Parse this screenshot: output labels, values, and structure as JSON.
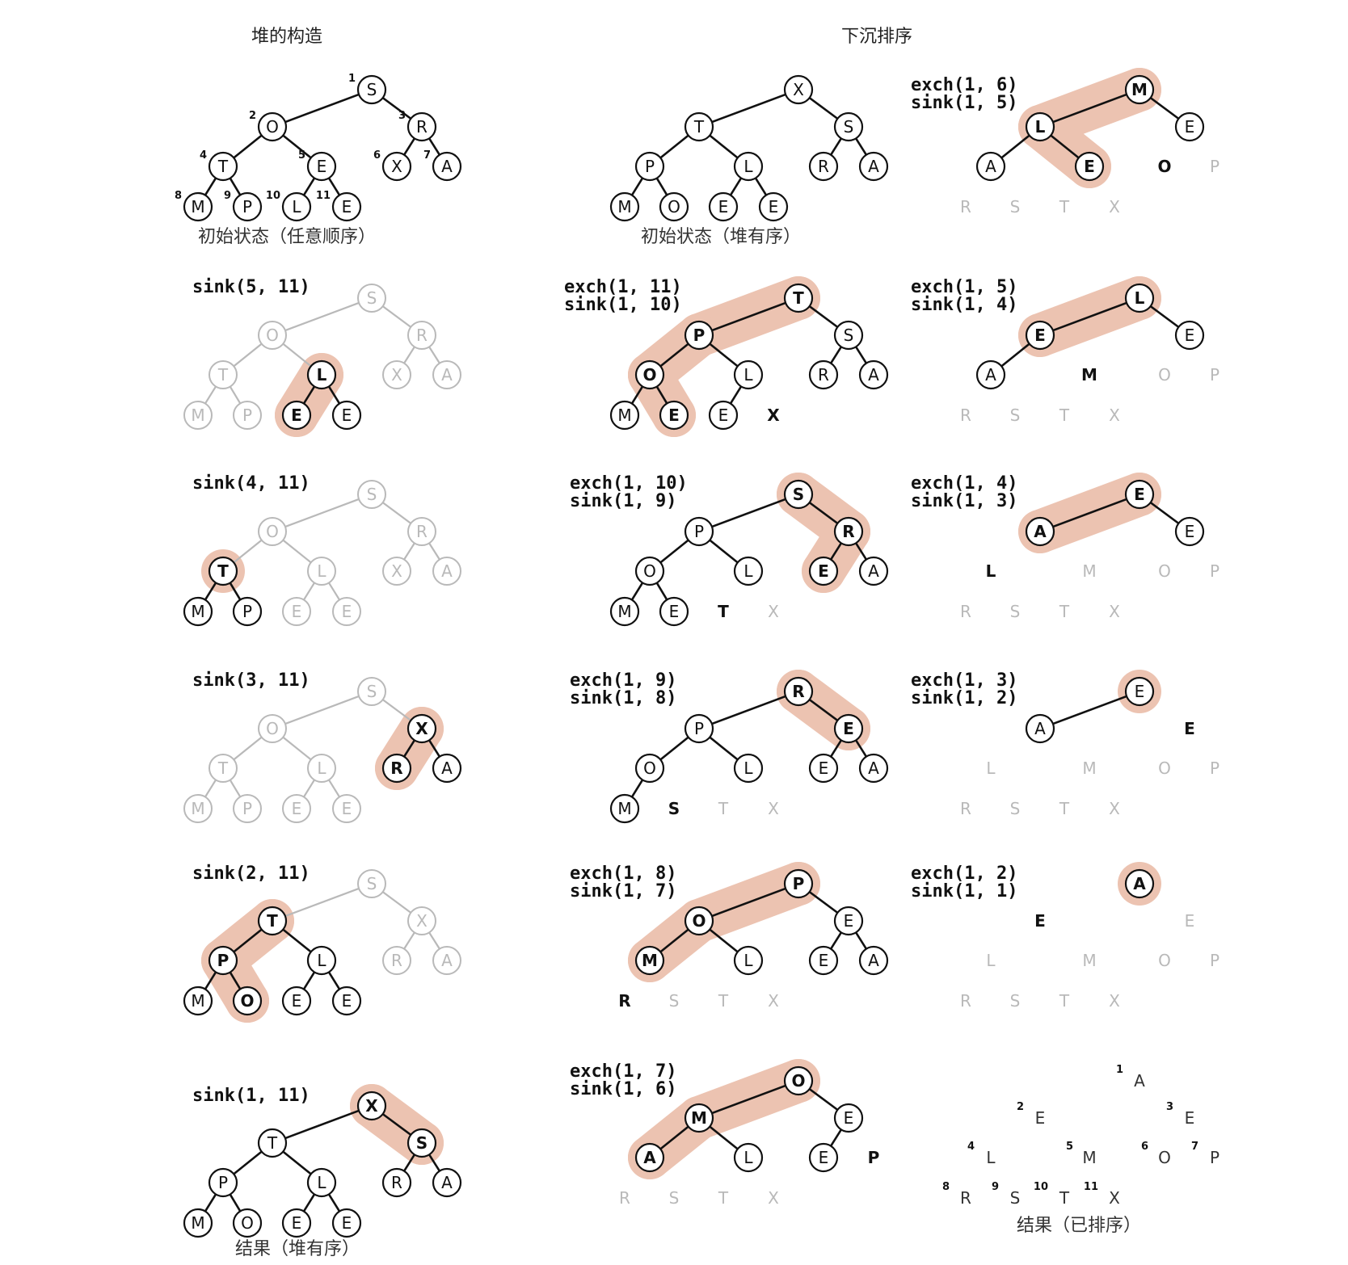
{
  "headings": {
    "build": "堆的构造",
    "sortdown": "下沉排序"
  },
  "captions": {
    "initial_arbitrary": "初始状态（任意顺序）",
    "initial_heap": "初始状态（堆有序）",
    "result_heap": "结果（堆有序）",
    "result_sorted": "结果（已排序）"
  },
  "index_labels": [
    "1",
    "2",
    "3",
    "4",
    "5",
    "6",
    "7",
    "8",
    "9",
    "10",
    "11"
  ],
  "build_steps": [
    {
      "id": "b0",
      "op": [],
      "keys": [
        "S",
        "O",
        "R",
        "T",
        "E",
        "X",
        "A",
        "M",
        "P",
        "L",
        "E"
      ],
      "node_style": [
        "n",
        "n",
        "n",
        "n",
        "n",
        "n",
        "n",
        "n",
        "n",
        "n",
        "n"
      ],
      "highlight": [],
      "edges_dark": "all",
      "show_index": true
    },
    {
      "id": "b1",
      "op": [
        "sink(5, 11)"
      ],
      "keys": [
        "S",
        "O",
        "R",
        "T",
        "L",
        "X",
        "A",
        "M",
        "P",
        "E",
        "E"
      ],
      "node_style": [
        "g",
        "g",
        "g",
        "g",
        "b",
        "g",
        "g",
        "g",
        "g",
        "b",
        "n"
      ],
      "highlight": [
        5,
        10
      ],
      "edges_dark": [
        [
          5,
          10
        ],
        [
          5,
          11
        ]
      ]
    },
    {
      "id": "b2",
      "op": [
        "sink(4, 11)"
      ],
      "keys": [
        "S",
        "O",
        "R",
        "T",
        "L",
        "X",
        "A",
        "M",
        "P",
        "E",
        "E"
      ],
      "node_style": [
        "g",
        "g",
        "g",
        "b",
        "g",
        "g",
        "g",
        "n",
        "n",
        "g",
        "g"
      ],
      "highlight": [
        4
      ],
      "edges_dark": [
        [
          4,
          8
        ],
        [
          4,
          9
        ]
      ]
    },
    {
      "id": "b3",
      "op": [
        "sink(3, 11)"
      ],
      "keys": [
        "S",
        "O",
        "X",
        "T",
        "L",
        "R",
        "A",
        "M",
        "P",
        "E",
        "E"
      ],
      "node_style": [
        "g",
        "g",
        "b",
        "g",
        "g",
        "b",
        "n",
        "g",
        "g",
        "g",
        "g"
      ],
      "highlight": [
        3,
        6
      ],
      "edges_dark": [
        [
          3,
          6
        ],
        [
          3,
          7
        ]
      ]
    },
    {
      "id": "b4",
      "op": [
        "sink(2, 11)"
      ],
      "keys": [
        "S",
        "T",
        "X",
        "P",
        "L",
        "R",
        "A",
        "M",
        "O",
        "E",
        "E"
      ],
      "node_style": [
        "g",
        "b",
        "g",
        "b",
        "n",
        "g",
        "g",
        "n",
        "b",
        "n",
        "n"
      ],
      "highlight": [
        2,
        4,
        9
      ],
      "edges_dark": [
        [
          2,
          4
        ],
        [
          2,
          5
        ],
        [
          4,
          8
        ],
        [
          4,
          9
        ],
        [
          5,
          10
        ],
        [
          5,
          11
        ]
      ]
    },
    {
      "id": "b5",
      "op": [
        "sink(1, 11)"
      ],
      "keys": [
        "X",
        "T",
        "S",
        "P",
        "L",
        "R",
        "A",
        "M",
        "O",
        "E",
        "E"
      ],
      "node_style": [
        "b",
        "n",
        "b",
        "n",
        "n",
        "n",
        "n",
        "n",
        "n",
        "n",
        "n"
      ],
      "highlight": [
        1,
        3
      ],
      "edges_dark": "all"
    }
  ],
  "sort_steps": [
    {
      "id": "s0",
      "op": [],
      "keys": [
        "X",
        "T",
        "S",
        "P",
        "L",
        "R",
        "A",
        "M",
        "O",
        "E",
        "E"
      ],
      "heap_size": 11,
      "node_style": [
        "n",
        "n",
        "n",
        "n",
        "n",
        "n",
        "n",
        "n",
        "n",
        "n",
        "n"
      ],
      "highlight": [],
      "bold_sorted": null
    },
    {
      "id": "s1",
      "op": [
        "exch(1, 11)",
        "sink(1, 10)"
      ],
      "keys": [
        "T",
        "P",
        "S",
        "O",
        "L",
        "R",
        "A",
        "M",
        "E",
        "E",
        "X"
      ],
      "heap_size": 10,
      "node_style": [
        "b",
        "b",
        "n",
        "b",
        "n",
        "n",
        "n",
        "n",
        "b",
        "n",
        "b"
      ],
      "highlight": [
        1,
        2,
        4,
        9
      ],
      "bold_sorted": 11
    },
    {
      "id": "s2",
      "op": [
        "exch(1, 10)",
        "sink(1, 9)"
      ],
      "keys": [
        "S",
        "P",
        "R",
        "O",
        "L",
        "E",
        "A",
        "M",
        "E",
        "T",
        "X"
      ],
      "heap_size": 9,
      "node_style": [
        "b",
        "n",
        "b",
        "n",
        "n",
        "b",
        "n",
        "n",
        "n",
        "b",
        "g"
      ],
      "highlight": [
        1,
        3,
        6
      ],
      "bold_sorted": 10
    },
    {
      "id": "s3",
      "op": [
        "exch(1, 9)",
        "sink(1, 8)"
      ],
      "keys": [
        "R",
        "P",
        "E",
        "O",
        "L",
        "E",
        "A",
        "M",
        "S",
        "T",
        "X"
      ],
      "heap_size": 8,
      "node_style": [
        "b",
        "n",
        "b",
        "n",
        "n",
        "n",
        "n",
        "n",
        "b",
        "g",
        "g"
      ],
      "highlight": [
        1,
        3
      ],
      "bold_sorted": 9
    },
    {
      "id": "s4",
      "op": [
        "exch(1, 8)",
        "sink(1, 7)"
      ],
      "keys": [
        "P",
        "O",
        "E",
        "M",
        "L",
        "E",
        "A",
        "R",
        "S",
        "T",
        "X"
      ],
      "heap_size": 7,
      "node_style": [
        "b",
        "b",
        "n",
        "b",
        "n",
        "n",
        "n",
        "b",
        "g",
        "g",
        "g"
      ],
      "highlight": [
        1,
        2,
        4
      ],
      "bold_sorted": 8
    },
    {
      "id": "s5",
      "op": [
        "exch(1, 7)",
        "sink(1, 6)"
      ],
      "keys": [
        "O",
        "M",
        "E",
        "A",
        "L",
        "E",
        "P",
        "R",
        "S",
        "T",
        "X"
      ],
      "heap_size": 6,
      "node_style": [
        "b",
        "b",
        "n",
        "b",
        "n",
        "n",
        "b",
        "g",
        "g",
        "g",
        "g"
      ],
      "highlight": [
        1,
        2,
        4
      ],
      "bold_sorted": 7
    },
    {
      "id": "s6",
      "op": [
        "exch(1, 6)",
        "sink(1, 5)"
      ],
      "keys": [
        "M",
        "L",
        "E",
        "A",
        "E",
        "O",
        "P",
        "R",
        "S",
        "T",
        "X"
      ],
      "heap_size": 5,
      "node_style": [
        "b",
        "b",
        "n",
        "n",
        "b",
        "b",
        "g",
        "g",
        "g",
        "g",
        "g"
      ],
      "highlight": [
        1,
        2,
        5
      ],
      "bold_sorted": 6
    },
    {
      "id": "s7",
      "op": [
        "exch(1, 5)",
        "sink(1, 4)"
      ],
      "keys": [
        "L",
        "E",
        "E",
        "A",
        "M",
        "O",
        "P",
        "R",
        "S",
        "T",
        "X"
      ],
      "heap_size": 4,
      "node_style": [
        "b",
        "b",
        "n",
        "n",
        "b",
        "g",
        "g",
        "g",
        "g",
        "g",
        "g"
      ],
      "highlight": [
        1,
        2
      ],
      "bold_sorted": 5
    },
    {
      "id": "s8",
      "op": [
        "exch(1, 4)",
        "sink(1, 3)"
      ],
      "keys": [
        "E",
        "A",
        "E",
        "L",
        "M",
        "O",
        "P",
        "R",
        "S",
        "T",
        "X"
      ],
      "heap_size": 3,
      "node_style": [
        "b",
        "b",
        "n",
        "b",
        "g",
        "g",
        "g",
        "g",
        "g",
        "g",
        "g"
      ],
      "highlight": [
        1,
        2
      ],
      "bold_sorted": 4
    },
    {
      "id": "s9",
      "op": [
        "exch(1, 3)",
        "sink(1, 2)"
      ],
      "keys": [
        "E",
        "A",
        "E",
        "L",
        "M",
        "O",
        "P",
        "R",
        "S",
        "T",
        "X"
      ],
      "heap_size": 2,
      "node_style": [
        "n",
        "n",
        "b",
        "g",
        "g",
        "g",
        "g",
        "g",
        "g",
        "g",
        "g"
      ],
      "highlight": [
        1
      ],
      "bold_sorted": 3
    },
    {
      "id": "s10",
      "op": [
        "exch(1, 2)",
        "sink(1, 1)"
      ],
      "keys": [
        "A",
        "E",
        "E",
        "L",
        "M",
        "O",
        "P",
        "R",
        "S",
        "T",
        "X"
      ],
      "heap_size": 1,
      "node_style": [
        "b",
        "b",
        "g",
        "g",
        "g",
        "g",
        "g",
        "g",
        "g",
        "g",
        "g"
      ],
      "highlight": [
        1
      ],
      "bold_sorted": 2
    },
    {
      "id": "s11",
      "op": [],
      "keys": [
        "A",
        "E",
        "E",
        "L",
        "M",
        "O",
        "P",
        "R",
        "S",
        "T",
        "X"
      ],
      "heap_size": 0,
      "node_style": [
        "n",
        "n",
        "n",
        "n",
        "n",
        "n",
        "n",
        "n",
        "n",
        "n",
        "n"
      ],
      "highlight": [],
      "bold_sorted": null,
      "show_index": true
    }
  ],
  "colors": {
    "highlight": "#ecc3b1",
    "dark": "#111111",
    "gray": "#b9b9b9",
    "background": "#ffffff"
  }
}
